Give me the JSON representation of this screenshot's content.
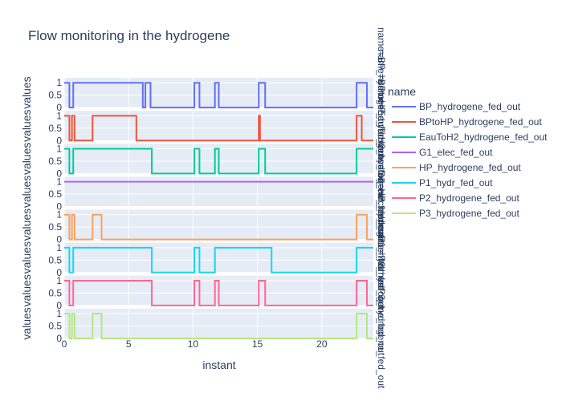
{
  "chart_data": {
    "type": "line",
    "title": "Flow monitoring in the hydrogene",
    "xlabel": "instant",
    "ylabel": "values",
    "xlim": [
      0,
      24
    ],
    "ylim": [
      0,
      1.2
    ],
    "x_ticks": [
      0,
      5,
      10,
      15,
      20
    ],
    "y_ticks": [
      0,
      0.5,
      1
    ],
    "y_tick_labels": [
      "0",
      "0.5",
      "1"
    ],
    "grid": true,
    "legend_title": "name",
    "legend_position": "right",
    "line_shape": "step",
    "series": [
      {
        "name": "BP_hydrogene_fed_out",
        "facet_label": "name=BP_hydrogene_fed_out",
        "color": "#636efa",
        "x": [
          0,
          0.4,
          0.7,
          6.1,
          6.3,
          6.7,
          10.1,
          10.5,
          11.7,
          12.0,
          15.1,
          15.6,
          22.7,
          23.5,
          24
        ],
        "y": [
          1,
          0,
          1,
          0,
          1,
          0,
          1,
          0,
          1,
          0,
          1,
          0,
          1,
          0,
          0
        ]
      },
      {
        "name": "BPtoHP_hydrogene_fed_out",
        "facet_label": "name=BPtoHP_hydrogene_fed_out",
        "color": "#ef553b",
        "x": [
          0,
          0.4,
          0.6,
          0.8,
          2.2,
          5.6,
          15.1,
          15.2,
          22.7,
          23.1,
          23.5,
          24
        ],
        "y": [
          1,
          0,
          1,
          0,
          1,
          0,
          1,
          0,
          1,
          0,
          0,
          0
        ]
      },
      {
        "name": "EauToH2_hydrogene_fed_out",
        "facet_label": "name=EauToH2_hydrogene_fed_out",
        "color": "#00cc96",
        "x": [
          0,
          0.4,
          0.7,
          6.8,
          10.1,
          10.5,
          11.7,
          12.0,
          15.1,
          15.6,
          22.7,
          23.5,
          24
        ],
        "y": [
          1,
          0,
          1,
          0,
          1,
          0,
          1,
          0,
          1,
          0,
          1,
          1,
          1
        ]
      },
      {
        "name": "G1_elec_fed_out",
        "facet_label": "name=G1_elec_fed_out",
        "color": "#ab63fa",
        "x": [
          0,
          24
        ],
        "y": [
          1,
          1
        ]
      },
      {
        "name": "HP_hydrogene_fed_out",
        "facet_label": "name=HP_hydrogene_fed_out",
        "color": "#ffa15a",
        "x": [
          0,
          0.4,
          0.6,
          0.8,
          2.2,
          2.9,
          22.7,
          23.5,
          24
        ],
        "y": [
          1,
          0,
          1,
          0,
          1,
          0,
          1,
          0,
          0
        ]
      },
      {
        "name": "P1_hydr_fed_out",
        "facet_label": "name=P1_hydr_fed_out",
        "color": "#19d3f3",
        "x": [
          0,
          0.4,
          0.7,
          6.8,
          10.1,
          10.5,
          11.7,
          12.0,
          16.1,
          22.7,
          23.5,
          24
        ],
        "y": [
          1,
          0,
          1,
          0,
          1,
          0,
          1,
          1,
          0,
          1,
          1,
          1
        ]
      },
      {
        "name": "P2_hydrogene_fed_out",
        "facet_label": "name=P2_hydrogene_fed_out",
        "color": "#ff6692",
        "x": [
          0,
          0.4,
          0.7,
          6.8,
          10.1,
          10.5,
          11.7,
          12.0,
          15.1,
          15.6,
          22.7,
          23.5,
          24
        ],
        "y": [
          1,
          0,
          1,
          0,
          1,
          0,
          1,
          0,
          1,
          0,
          1,
          0,
          0
        ]
      },
      {
        "name": "P3_hydrogene_fed_out",
        "facet_label": "name=P3_hydrogene_fed_out",
        "color": "#b6e880",
        "x": [
          0,
          0.4,
          0.6,
          0.8,
          2.2,
          2.9,
          22.7,
          23.5,
          24
        ],
        "y": [
          1,
          0,
          1,
          0,
          1,
          0,
          1,
          0,
          0
        ]
      }
    ]
  }
}
